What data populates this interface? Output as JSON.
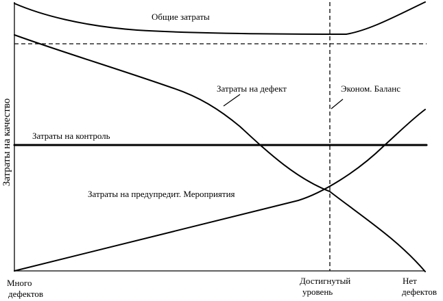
{
  "y_axis_label": "Затраты на качество",
  "curves": {
    "total_cost": "Общие затраты",
    "defect_cost": "Затраты на дефект",
    "control_cost": "Затраты на контроль",
    "prevention_cost": "Затраты на предупредит. Мероприятия",
    "economic_balance": "Эконом. Баланс"
  },
  "x_axis_labels": {
    "left": [
      "Много",
      "дефектов"
    ],
    "middle": [
      "Достигнутый",
      "уровень"
    ],
    "right": [
      "Нет",
      "дефектов"
    ]
  }
}
